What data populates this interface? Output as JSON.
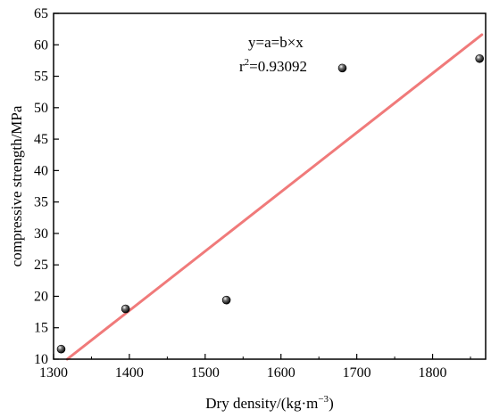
{
  "chart_data": {
    "type": "scatter",
    "xlabel": "Dry density/(kg·m",
    "xlabel_sup": "−3",
    "xlabel_end": ")",
    "ylabel": "compressive strength/MPa",
    "xlim": [
      1300,
      1870
    ],
    "ylim": [
      10,
      65
    ],
    "x_ticks": [
      1300,
      1400,
      1500,
      1600,
      1700,
      1800
    ],
    "y_ticks": [
      10,
      15,
      20,
      25,
      30,
      35,
      40,
      45,
      50,
      55,
      60,
      65
    ],
    "points": [
      {
        "x": 1310,
        "y": 11.6
      },
      {
        "x": 1395,
        "y": 18.0
      },
      {
        "x": 1528,
        "y": 19.4
      },
      {
        "x": 1681,
        "y": 56.3
      },
      {
        "x": 1862,
        "y": 57.8
      }
    ],
    "fit_line": {
      "x": [
        1318,
        1865
      ],
      "y": [
        10.0,
        61.6
      ],
      "color": "#f07a7a"
    },
    "equation": "y=a=b×x",
    "r2_prefix": "r",
    "r2_sup": "2",
    "r2_value": "=0.93092",
    "grid": false,
    "legend": "none"
  }
}
